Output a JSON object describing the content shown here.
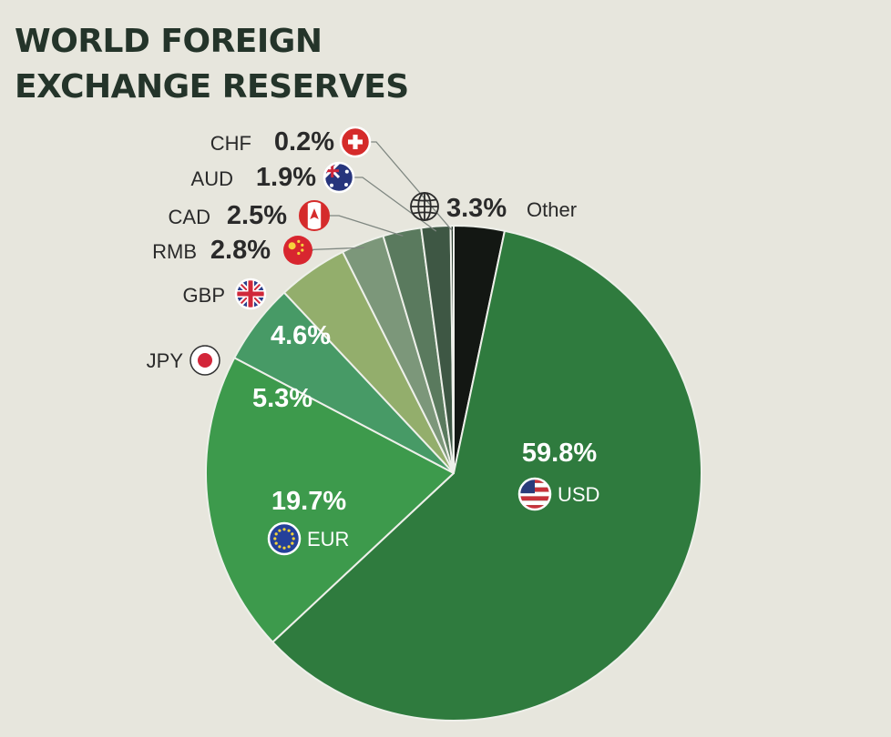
{
  "chart_data": {
    "type": "pie",
    "title_lines": [
      "WORLD FOREIGN",
      "EXCHANGE RESERVES"
    ],
    "slices": [
      {
        "code": "USD",
        "label": "59.8%",
        "value": 59.8,
        "color": "#2f7b3e",
        "flag": "us-flag-icon"
      },
      {
        "code": "EUR",
        "label": "19.7%",
        "value": 19.7,
        "color": "#3d9a4c",
        "flag": "eu-flag-icon"
      },
      {
        "code": "JPY",
        "label": "5.3%",
        "value": 5.3,
        "color": "#479a66",
        "flag": "japan-flag-icon"
      },
      {
        "code": "GBP",
        "label": "4.6%",
        "value": 4.6,
        "color": "#93ae6c",
        "flag": "uk-flag-icon"
      },
      {
        "code": "RMB",
        "label": "2.8%",
        "value": 2.8,
        "color": "#7c977a",
        "flag": "china-flag-icon"
      },
      {
        "code": "CAD",
        "label": "2.5%",
        "value": 2.5,
        "color": "#5a7a5e",
        "flag": "canada-flag-icon"
      },
      {
        "code": "AUD",
        "label": "1.9%",
        "value": 1.9,
        "color": "#3e5744",
        "flag": "australia-flag-icon"
      },
      {
        "code": "CHF",
        "label": "0.2%",
        "value": 0.2,
        "color": "#2c3d30",
        "flag": "switzerland-flag-icon"
      },
      {
        "code": "Other",
        "label": "3.3%",
        "value": 3.3,
        "color": "#131713",
        "flag": "globe-icon"
      }
    ]
  }
}
